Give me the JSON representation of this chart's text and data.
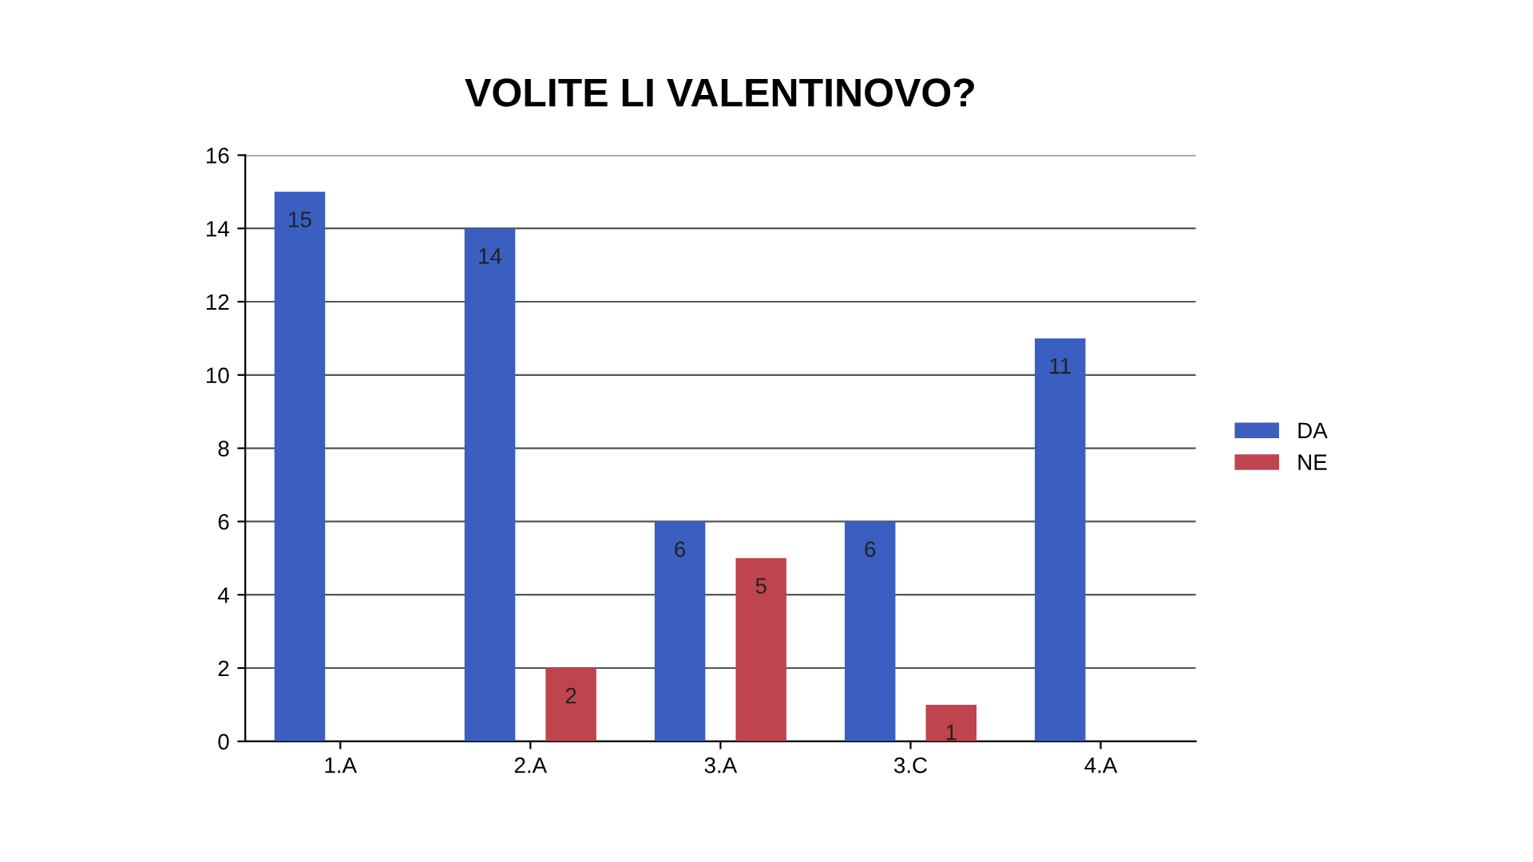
{
  "chart_data": {
    "type": "bar",
    "title": "VOLITE LI VALENTINOVO?",
    "categories": [
      "1.A",
      "2.A",
      "3.A",
      "3.C",
      "4.A"
    ],
    "series": [
      {
        "name": "DA",
        "color": "#3a5fc0",
        "values": [
          15,
          14,
          6,
          6,
          11
        ]
      },
      {
        "name": "NE",
        "color": "#c0444e",
        "values": [
          null,
          2,
          5,
          1,
          null
        ]
      }
    ],
    "ylim": [
      0,
      16
    ],
    "yticks": [
      0,
      2,
      4,
      6,
      8,
      10,
      12,
      14,
      16
    ],
    "grid": "y",
    "legend": "right",
    "data_labels": true
  }
}
